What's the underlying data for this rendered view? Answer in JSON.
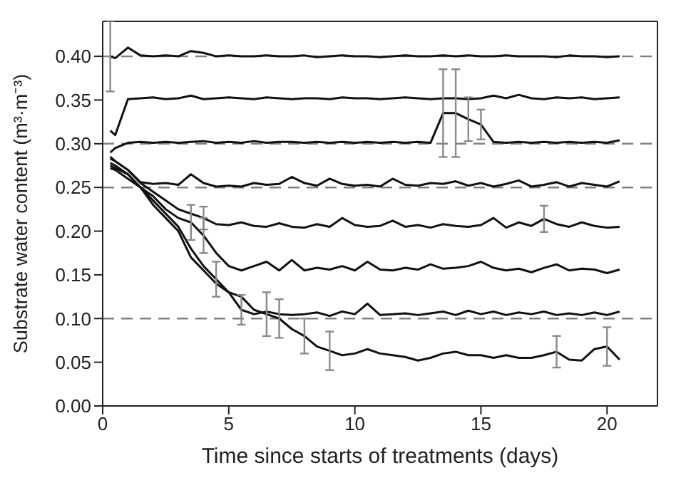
{
  "chart_data": {
    "type": "line",
    "xlabel": "Time since starts of treatments (days)",
    "ylabel": "Substrate water content (m³·m⁻³)",
    "xlim": [
      0,
      22
    ],
    "xticks": [
      0,
      5,
      10,
      15,
      20
    ],
    "ylim": [
      0,
      0.44
    ],
    "yticks": [
      {
        "value": 0,
        "label": "0.00"
      },
      {
        "value": 0.05,
        "label": "0.05"
      },
      {
        "value": 0.1,
        "label": "0.10"
      },
      {
        "value": 0.15,
        "label": "0.15"
      },
      {
        "value": 0.2,
        "label": "0.20"
      },
      {
        "value": 0.25,
        "label": "0.25"
      },
      {
        "value": 0.3,
        "label": "0.30"
      },
      {
        "value": 0.35,
        "label": "0.35"
      },
      {
        "value": 0.4,
        "label": "0.40"
      }
    ],
    "line_style": "solid",
    "x": [
      0.3,
      0.5,
      1,
      1.5,
      2,
      2.5,
      3,
      3.5,
      4,
      4.5,
      5,
      5.5,
      6,
      6.5,
      7,
      7.5,
      8,
      8.5,
      9,
      9.5,
      10,
      10.5,
      11,
      11.5,
      12,
      12.5,
      13,
      13.5,
      14,
      14.5,
      15,
      15.5,
      16,
      16.5,
      17,
      17.5,
      18,
      18.5,
      19,
      19.5,
      20,
      20.5
    ],
    "ref_lines": [
      {
        "axis": "y",
        "value": 0.4,
        "color": "#808080",
        "line_style": "dashed"
      },
      {
        "axis": "y",
        "value": 0.3,
        "color": "#808080",
        "line_style": "dashed"
      },
      {
        "axis": "y",
        "value": 0.25,
        "color": "#808080",
        "line_style": "dashed"
      },
      {
        "axis": "y",
        "value": 0.1,
        "color": "#808080",
        "line_style": "dashed"
      }
    ],
    "series": [
      {
        "color": "#111111",
        "values": [
          0.4,
          0.398,
          0.41,
          0.401,
          0.4,
          0.401,
          0.4,
          0.406,
          0.404,
          0.4,
          0.401,
          0.4,
          0.4,
          0.401,
          0.4,
          0.4,
          0.401,
          0.399,
          0.4,
          0.401,
          0.4,
          0.4,
          0.399,
          0.4,
          0.401,
          0.4,
          0.4,
          0.401,
          0.4,
          0.401,
          0.4,
          0.4,
          0.401,
          0.4,
          0.4,
          0.4,
          0.399,
          0.401,
          0.4,
          0.4,
          0.399,
          0.4
        ],
        "errors": [
          0.04,
          null,
          null,
          null,
          null,
          null,
          null,
          null,
          null,
          null,
          null,
          null,
          null,
          null,
          null,
          null,
          null,
          null,
          null,
          null,
          null,
          null,
          null,
          null,
          null,
          null,
          null,
          null,
          null,
          null,
          null,
          null,
          null,
          null,
          null,
          null,
          null,
          null,
          null,
          null,
          null,
          null
        ]
      },
      {
        "color": "#111111",
        "values": [
          0.315,
          0.31,
          0.351,
          0.352,
          0.353,
          0.351,
          0.352,
          0.355,
          0.351,
          0.352,
          0.353,
          0.352,
          0.351,
          0.353,
          0.352,
          0.351,
          0.352,
          0.352,
          0.351,
          0.353,
          0.352,
          0.352,
          0.351,
          0.352,
          0.353,
          0.352,
          0.351,
          0.352,
          0.352,
          0.351,
          0.352,
          0.355,
          0.352,
          0.356,
          0.352,
          0.351,
          0.353,
          0.352,
          0.353,
          0.351,
          0.352,
          0.353
        ]
      },
      {
        "color": "#111111",
        "values": [
          0.29,
          0.295,
          0.301,
          0.302,
          0.301,
          0.302,
          0.301,
          0.302,
          0.303,
          0.301,
          0.302,
          0.301,
          0.303,
          0.301,
          0.302,
          0.302,
          0.301,
          0.302,
          0.301,
          0.302,
          0.301,
          0.302,
          0.301,
          0.302,
          0.301,
          0.302,
          0.301,
          0.335,
          0.335,
          0.328,
          0.322,
          0.302,
          0.301,
          0.302,
          0.301,
          0.302,
          0.301,
          0.302,
          0.301,
          0.302,
          0.301,
          0.304
        ],
        "errors": [
          null,
          null,
          null,
          null,
          null,
          null,
          null,
          null,
          null,
          null,
          null,
          null,
          null,
          null,
          null,
          null,
          null,
          null,
          null,
          null,
          null,
          null,
          null,
          null,
          null,
          null,
          null,
          0.05,
          0.05,
          0.025,
          0.017,
          null,
          null,
          null,
          null,
          null,
          null,
          null,
          null,
          null,
          null,
          null
        ]
      },
      {
        "color": "#111111",
        "values": [
          0.285,
          0.28,
          0.27,
          0.256,
          0.254,
          0.255,
          0.253,
          0.265,
          0.255,
          0.251,
          0.252,
          0.251,
          0.255,
          0.253,
          0.254,
          0.262,
          0.255,
          0.252,
          0.26,
          0.254,
          0.252,
          0.253,
          0.251,
          0.26,
          0.253,
          0.252,
          0.255,
          0.254,
          0.257,
          0.252,
          0.255,
          0.251,
          0.254,
          0.258,
          0.251,
          0.253,
          0.256,
          0.251,
          0.255,
          0.253,
          0.251,
          0.257
        ]
      },
      {
        "color": "#111111",
        "values": [
          0.283,
          0.28,
          0.27,
          0.255,
          0.245,
          0.235,
          0.225,
          0.22,
          0.215,
          0.208,
          0.207,
          0.21,
          0.206,
          0.205,
          0.209,
          0.205,
          0.204,
          0.208,
          0.205,
          0.215,
          0.207,
          0.205,
          0.206,
          0.212,
          0.205,
          0.207,
          0.204,
          0.208,
          0.206,
          0.205,
          0.207,
          0.215,
          0.204,
          0.21,
          0.206,
          0.214,
          0.208,
          0.205,
          0.21,
          0.206,
          0.204,
          0.205
        ],
        "errors": [
          null,
          null,
          null,
          null,
          null,
          null,
          null,
          null,
          0.013,
          null,
          null,
          null,
          null,
          null,
          null,
          null,
          null,
          null,
          null,
          null,
          null,
          null,
          null,
          null,
          null,
          null,
          null,
          null,
          null,
          null,
          null,
          null,
          null,
          null,
          null,
          0.015,
          null,
          null,
          null,
          null,
          null,
          null
        ]
      },
      {
        "color": "#111111",
        "values": [
          0.278,
          0.275,
          0.265,
          0.25,
          0.24,
          0.225,
          0.215,
          0.21,
          0.195,
          0.175,
          0.16,
          0.155,
          0.16,
          0.165,
          0.155,
          0.167,
          0.155,
          0.158,
          0.156,
          0.16,
          0.155,
          0.165,
          0.156,
          0.155,
          0.158,
          0.156,
          0.162,
          0.157,
          0.158,
          0.16,
          0.165,
          0.158,
          0.155,
          0.157,
          0.153,
          0.158,
          0.162,
          0.155,
          0.157,
          0.156,
          0.152,
          0.156
        ],
        "errors": [
          null,
          null,
          null,
          null,
          null,
          null,
          null,
          0.02,
          0.02,
          null,
          null,
          null,
          null,
          null,
          null,
          null,
          null,
          null,
          null,
          null,
          null,
          null,
          null,
          null,
          null,
          null,
          null,
          null,
          null,
          null,
          null,
          null,
          null,
          null,
          null,
          null,
          null,
          null,
          null,
          null,
          null,
          null
        ]
      },
      {
        "color": "#111111",
        "values": [
          0.275,
          0.272,
          0.265,
          0.25,
          0.235,
          0.22,
          0.205,
          0.18,
          0.16,
          0.145,
          0.13,
          0.11,
          0.105,
          0.108,
          0.105,
          0.104,
          0.105,
          0.107,
          0.103,
          0.108,
          0.105,
          0.117,
          0.104,
          0.105,
          0.106,
          0.104,
          0.106,
          0.108,
          0.104,
          0.109,
          0.105,
          0.108,
          0.104,
          0.107,
          0.105,
          0.108,
          0.104,
          0.106,
          0.104,
          0.107,
          0.104,
          0.108
        ],
        "errors": [
          null,
          null,
          null,
          null,
          null,
          null,
          null,
          null,
          null,
          0.02,
          null,
          0.017,
          null,
          null,
          null,
          null,
          null,
          null,
          null,
          null,
          null,
          null,
          null,
          null,
          null,
          null,
          null,
          null,
          null,
          null,
          null,
          null,
          null,
          null,
          null,
          null,
          null,
          null,
          null,
          null,
          null,
          null
        ]
      },
      {
        "color": "#111111",
        "values": [
          0.272,
          0.27,
          0.26,
          0.25,
          0.23,
          0.215,
          0.2,
          0.17,
          0.155,
          0.14,
          0.13,
          0.125,
          0.11,
          0.105,
          0.1,
          0.088,
          0.08,
          0.068,
          0.063,
          0.058,
          0.06,
          0.065,
          0.06,
          0.058,
          0.056,
          0.052,
          0.055,
          0.06,
          0.062,
          0.058,
          0.058,
          0.055,
          0.058,
          0.055,
          0.055,
          0.058,
          0.062,
          0.053,
          0.052,
          0.065,
          0.068,
          0.053
        ],
        "errors": [
          null,
          null,
          null,
          null,
          null,
          null,
          null,
          null,
          null,
          null,
          null,
          null,
          null,
          0.025,
          0.022,
          null,
          0.02,
          null,
          0.022,
          null,
          null,
          null,
          null,
          null,
          null,
          null,
          null,
          null,
          null,
          null,
          null,
          null,
          null,
          null,
          null,
          null,
          0.018,
          null,
          null,
          null,
          0.022,
          null
        ]
      }
    ]
  }
}
